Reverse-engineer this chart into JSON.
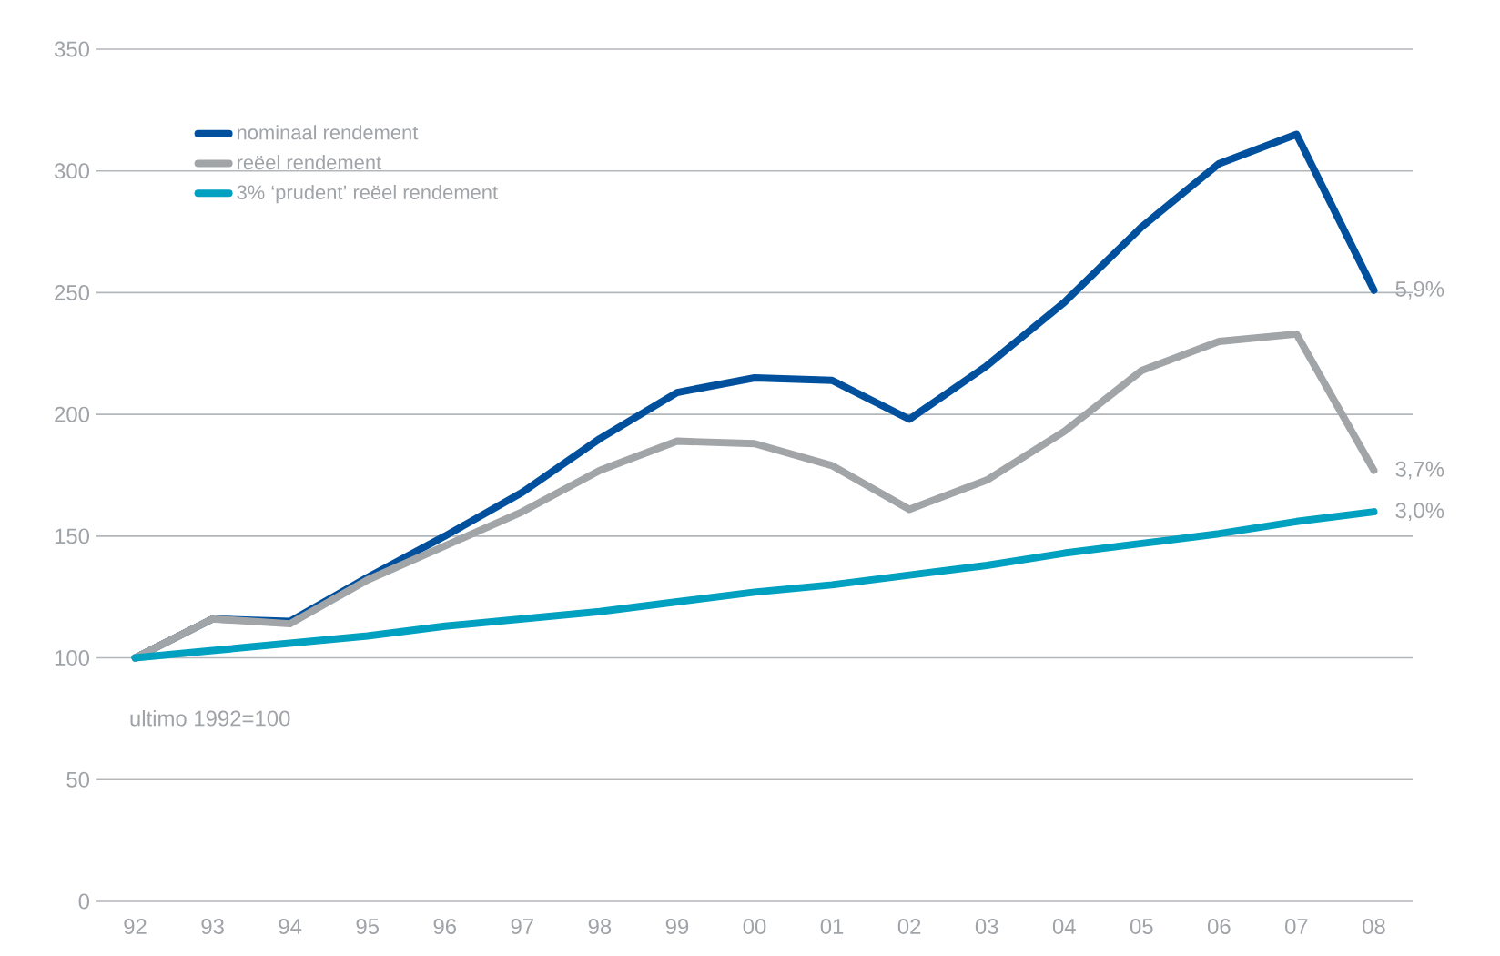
{
  "chart_data": {
    "type": "line",
    "categories": [
      "92",
      "93",
      "94",
      "95",
      "96",
      "97",
      "98",
      "99",
      "00",
      "01",
      "02",
      "03",
      "04",
      "05",
      "06",
      "07",
      "08"
    ],
    "series": [
      {
        "name": "nominaal rendement",
        "color": "#00509e",
        "values": [
          100,
          116,
          115,
          133,
          150,
          168,
          190,
          209,
          215,
          214,
          198,
          220,
          246,
          277,
          303,
          315,
          251
        ]
      },
      {
        "name": "reëel rendement",
        "color": "#a2a5a8",
        "values": [
          100,
          116,
          114,
          132,
          146,
          160,
          177,
          189,
          188,
          179,
          161,
          173,
          193,
          218,
          230,
          233,
          177
        ]
      },
      {
        "name": "3% ‘prudent’ reëel rendement",
        "color": "#00a0c0",
        "values": [
          100,
          103,
          106,
          109,
          113,
          116,
          119,
          123,
          127,
          130,
          134,
          138,
          143,
          147,
          151,
          156,
          160
        ]
      }
    ],
    "ylim": [
      0,
      350
    ],
    "yticks": [
      0,
      50,
      100,
      150,
      200,
      250,
      300,
      350
    ],
    "grid": "y",
    "legend": "top left",
    "line_style": "solid",
    "marker": "none",
    "annotations": [
      "ultimo 1992=100",
      {
        "text": "5,9%",
        "x": "08",
        "y": 251
      },
      {
        "text": "3,7%",
        "x": "08",
        "y": 177
      },
      {
        "text": "3,0%",
        "x": "08",
        "y": 160
      }
    ]
  }
}
